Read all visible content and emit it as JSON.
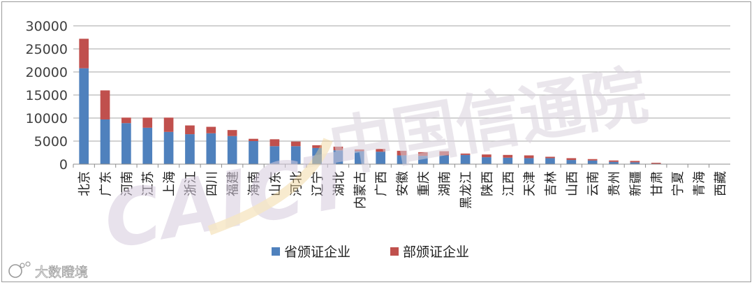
{
  "chart_data": {
    "type": "bar",
    "stacked": true,
    "categories": [
      "北京",
      "广东",
      "河南",
      "江苏",
      "上海",
      "浙江",
      "四川",
      "福建",
      "海南",
      "山东",
      "河北",
      "辽宁",
      "湖北",
      "内蒙古",
      "广西",
      "安徽",
      "重庆",
      "湖南",
      "黑龙江",
      "陕西",
      "江西",
      "天津",
      "吉林",
      "山西",
      "云南",
      "贵州",
      "新疆",
      "甘肃",
      "宁夏",
      "青海",
      "西藏"
    ],
    "series": [
      {
        "name": "省颁证企业",
        "color": "#4f81bd",
        "values": [
          20800,
          9700,
          8900,
          7900,
          7000,
          6500,
          6700,
          6100,
          5000,
          3900,
          3900,
          3500,
          3000,
          2800,
          2700,
          1900,
          1800,
          1900,
          2000,
          1500,
          1400,
          1300,
          1300,
          900,
          800,
          500,
          400,
          100,
          0,
          0,
          0
        ]
      },
      {
        "name": "部颁证企业",
        "color": "#c0504d",
        "values": [
          6400,
          6300,
          1200,
          2200,
          3100,
          1900,
          1400,
          1300,
          500,
          1500,
          1000,
          600,
          800,
          400,
          600,
          1000,
          800,
          900,
          300,
          600,
          600,
          600,
          300,
          400,
          300,
          300,
          300,
          200,
          0,
          0,
          0
        ]
      }
    ],
    "ylim": [
      0,
      30000
    ],
    "yticks": [
      0,
      5000,
      10000,
      15000,
      20000,
      25000,
      30000
    ],
    "grid": true,
    "legend": "bottom"
  },
  "watermark": {
    "text": "中国信通院",
    "logo_text": "CAICT",
    "brand_color": "#c8b8cf",
    "accent_color": "#e8b64a"
  },
  "source_logo": {
    "text": "大数瞪境",
    "icon": "weibo-like-logo-icon"
  }
}
